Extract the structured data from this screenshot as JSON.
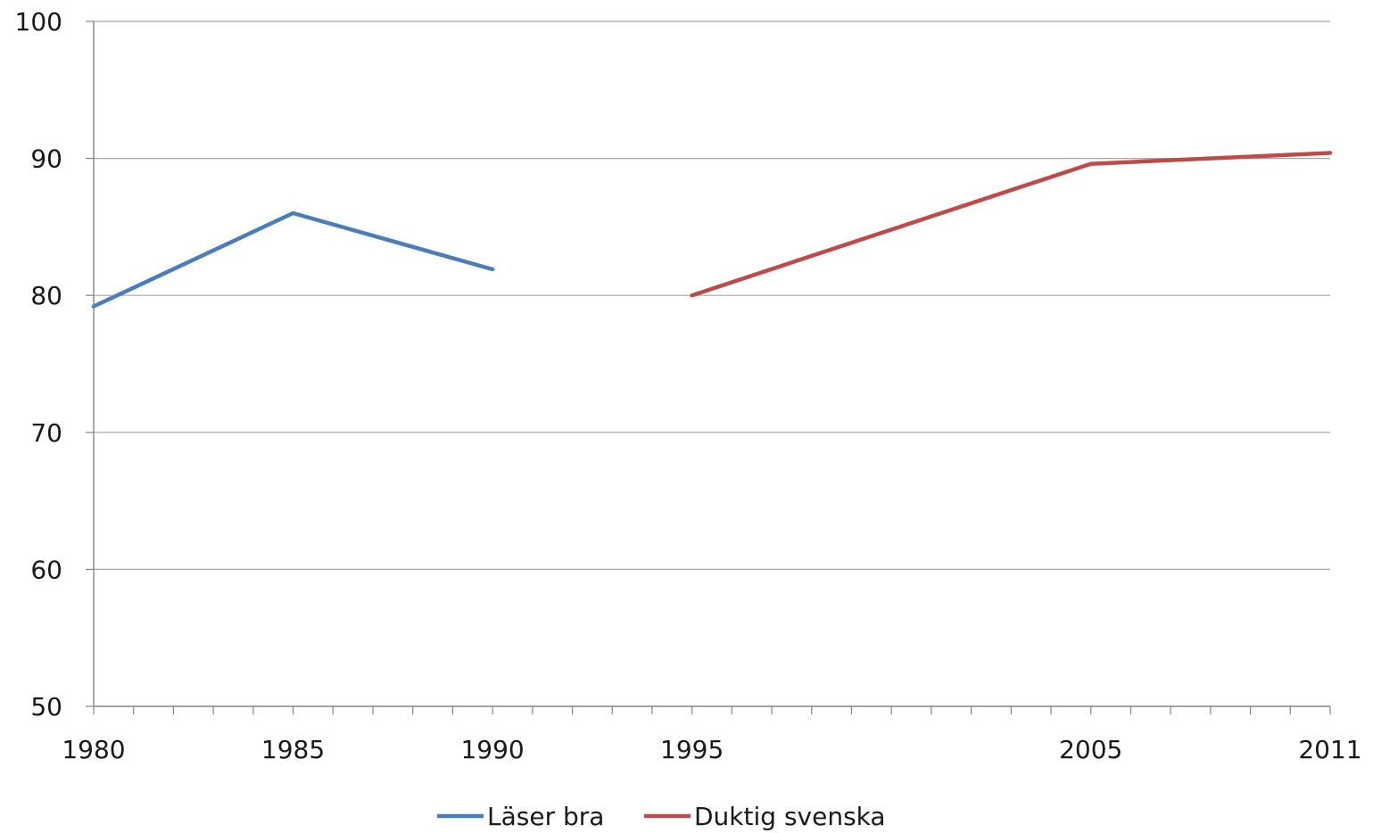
{
  "chart_data": {
    "type": "line",
    "title": "",
    "xlabel": "",
    "ylabel": "",
    "x_range": [
      1980,
      2011
    ],
    "x_tick_labels": [
      "1980",
      "1985",
      "1990",
      "1995",
      "2005",
      "2011"
    ],
    "x_tick_values": [
      1980,
      1985,
      1990,
      1995,
      2005,
      2011
    ],
    "ylim": [
      50,
      100
    ],
    "y_ticks": [
      50,
      60,
      70,
      80,
      90,
      100
    ],
    "grid": "horizontal",
    "legend_position": "bottom",
    "series": [
      {
        "name": "Läser bra",
        "color": "#4a7ebb",
        "points": [
          {
            "x": 1980,
            "y": 79.2
          },
          {
            "x": 1985,
            "y": 86.0
          },
          {
            "x": 1990,
            "y": 81.9
          }
        ]
      },
      {
        "name": "Duktig svenska",
        "color": "#be4b48",
        "points": [
          {
            "x": 1995,
            "y": 80.0
          },
          {
            "x": 2005,
            "y": 89.6
          },
          {
            "x": 2011,
            "y": 90.4
          }
        ]
      }
    ]
  }
}
